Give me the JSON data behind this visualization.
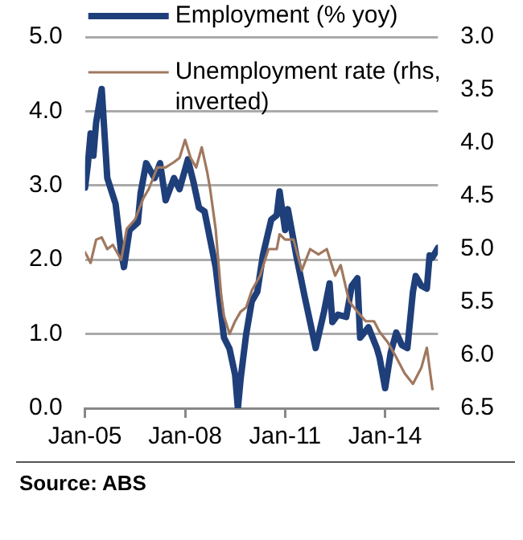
{
  "chart_data": {
    "type": "line",
    "x": [
      "2005-01",
      "2005-02",
      "2005-03",
      "2005-04",
      "2005-05",
      "2005-07",
      "2005-09",
      "2005-12",
      "2006-02",
      "2006-03",
      "2006-05",
      "2006-08",
      "2006-09",
      "2006-11",
      "2007-02",
      "2007-04",
      "2007-06",
      "2007-09",
      "2007-11",
      "2008-02",
      "2008-04",
      "2008-06",
      "2008-08",
      "2008-12",
      "2009-03",
      "2009-05",
      "2009-07",
      "2009-08",
      "2009-09",
      "2009-11",
      "2010-01",
      "2010-03",
      "2010-05",
      "2010-08",
      "2010-10",
      "2010-11",
      "2011-01",
      "2011-02",
      "2011-05",
      "2011-08",
      "2011-12",
      "2012-03",
      "2012-05",
      "2012-06",
      "2012-08",
      "2012-11",
      "2013-01",
      "2013-03",
      "2013-04",
      "2013-07",
      "2013-10",
      "2013-11",
      "2014-01",
      "2014-03",
      "2014-05",
      "2014-07",
      "2014-09",
      "2014-11",
      "2014-12",
      "2015-02",
      "2015-04",
      "2015-05",
      "2015-06",
      "2015-08"
    ],
    "series": [
      {
        "name": "Employment (% yoy)",
        "color": "#1f3f7a",
        "values": [
          2.97,
          3.28,
          3.7,
          3.4,
          3.85,
          4.3,
          3.1,
          2.75,
          2.1,
          1.9,
          2.4,
          2.5,
          2.9,
          3.3,
          3.1,
          3.3,
          2.8,
          3.1,
          2.95,
          3.35,
          3.05,
          2.7,
          2.65,
          1.9,
          0.95,
          0.8,
          0.45,
          0.0,
          0.4,
          1.0,
          1.44,
          1.57,
          2.06,
          2.54,
          2.6,
          2.92,
          2.4,
          2.68,
          2.06,
          1.51,
          0.81,
          1.3,
          1.68,
          1.16,
          1.26,
          1.23,
          1.65,
          1.75,
          0.95,
          1.09,
          0.81,
          0.68,
          0.27,
          0.75,
          1.02,
          0.85,
          0.81,
          1.57,
          1.78,
          1.65,
          1.61,
          2.06,
          2.03,
          2.16
        ]
      },
      {
        "name": "Unemployment rate (rhs, inverted)",
        "color": "#a0785f",
        "axis": "y2",
        "x": [
          "2005-01",
          "2005-03",
          "2005-05",
          "2005-07",
          "2005-09",
          "2005-11",
          "2006-02",
          "2006-04",
          "2006-07",
          "2006-10",
          "2006-12",
          "2007-03",
          "2007-06",
          "2007-09",
          "2007-11",
          "2008-01",
          "2008-03",
          "2008-05",
          "2008-07",
          "2008-09",
          "2008-10",
          "2008-12",
          "2009-02",
          "2009-03",
          "2009-05",
          "2009-07",
          "2009-09",
          "2009-11",
          "2010-01",
          "2010-04",
          "2010-07",
          "2010-10",
          "2010-11",
          "2011-01",
          "2011-04",
          "2011-07",
          "2011-10",
          "2012-01",
          "2012-04",
          "2012-07",
          "2012-09",
          "2012-12",
          "2013-03",
          "2013-06",
          "2013-09",
          "2013-11",
          "2014-02",
          "2014-05",
          "2014-08",
          "2014-11",
          "2015-02",
          "2015-04",
          "2015-06"
        ],
        "values": [
          5.03,
          5.13,
          4.91,
          4.89,
          5.0,
          4.96,
          5.1,
          4.81,
          4.72,
          4.52,
          4.43,
          4.23,
          4.23,
          4.18,
          4.14,
          3.97,
          4.14,
          4.23,
          4.04,
          4.28,
          4.43,
          4.81,
          5.44,
          5.63,
          5.8,
          5.68,
          5.59,
          5.55,
          5.39,
          5.25,
          5.0,
          5.0,
          4.86,
          4.91,
          4.91,
          5.2,
          5.0,
          5.05,
          5.0,
          5.25,
          5.15,
          5.49,
          5.59,
          5.68,
          5.68,
          5.78,
          5.88,
          6.02,
          6.17,
          6.27,
          6.12,
          5.93,
          6.32
        ]
      }
    ],
    "xlim": [
      "2005-01",
      "2015-08"
    ],
    "xticks": [
      {
        "value": "2005-01",
        "label": "Jan-05"
      },
      {
        "value": "2008-01",
        "label": "Jan-08"
      },
      {
        "value": "2011-01",
        "label": "Jan-11"
      },
      {
        "value": "2014-01",
        "label": "Jan-14"
      }
    ],
    "ylim": [
      0,
      5
    ],
    "yticks": [
      {
        "value": 0,
        "label": "0.0"
      },
      {
        "value": 1,
        "label": "1.0"
      },
      {
        "value": 2,
        "label": "2.0"
      },
      {
        "value": 3,
        "label": "3.0"
      },
      {
        "value": 4,
        "label": "4.0"
      },
      {
        "value": 5,
        "label": "5.0"
      }
    ],
    "y2lim": [
      6.5,
      3.0
    ],
    "y2ticks": [
      {
        "value": 3,
        "label": "3.0"
      },
      {
        "value": 3.5,
        "label": "3.5"
      },
      {
        "value": 4,
        "label": "4.0"
      },
      {
        "value": 4.5,
        "label": "4.5"
      },
      {
        "value": 5,
        "label": "5.0"
      },
      {
        "value": 5.5,
        "label": "5.5"
      },
      {
        "value": 6,
        "label": "6.0"
      },
      {
        "value": 6.5,
        "label": "6.5"
      }
    ],
    "grid": "y",
    "legend": "top",
    "marker": "none",
    "line_style": "solid",
    "annotations": [
      "Source: ABS"
    ]
  }
}
